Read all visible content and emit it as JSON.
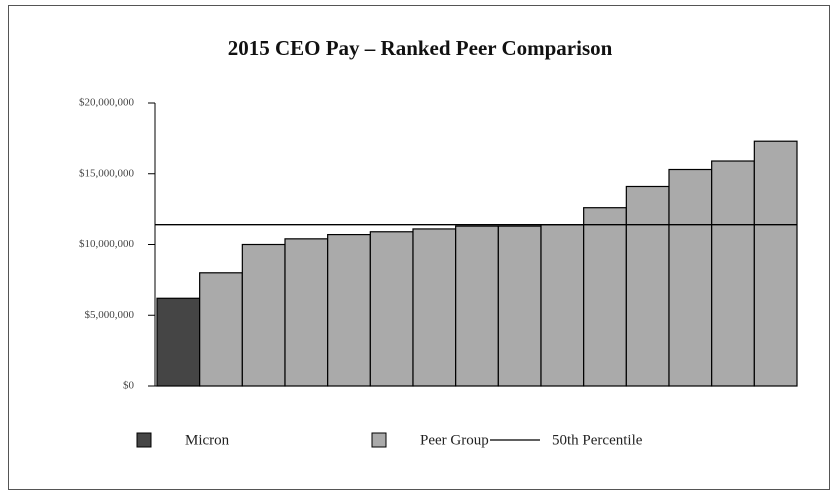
{
  "chart_data": {
    "type": "bar",
    "title": "2015 CEO Pay – Ranked Peer Comparison",
    "categories": [
      null,
      null,
      null,
      null,
      null,
      null,
      null,
      null,
      null,
      null,
      null,
      null,
      null,
      null,
      null
    ],
    "series": [
      {
        "name": "Micron",
        "color": "#454545",
        "values": [
          6200000,
          null,
          null,
          null,
          null,
          null,
          null,
          null,
          null,
          null,
          null,
          null,
          null,
          null,
          null
        ]
      },
      {
        "name": "Peer Group",
        "color": "#aaaaaa",
        "values": [
          null,
          8000000,
          10000000,
          10400000,
          10700000,
          10900000,
          11100000,
          11300000,
          11300000,
          11400000,
          12600000,
          14100000,
          15300000,
          15900000,
          17300000
        ]
      }
    ],
    "reference_lines": [
      {
        "name": "50th Percentile",
        "value": 11400000,
        "color": "#000000"
      }
    ],
    "ylim": [
      0,
      20000000
    ],
    "yticks": [
      {
        "value": 0,
        "label": "$0"
      },
      {
        "value": 5000000,
        "label": "$5,000,000"
      },
      {
        "value": 10000000,
        "label": "$10,000,000"
      },
      {
        "value": 15000000,
        "label": "$15,000,000"
      },
      {
        "value": 20000000,
        "label": "$20,000,000"
      }
    ],
    "grid": false
  }
}
